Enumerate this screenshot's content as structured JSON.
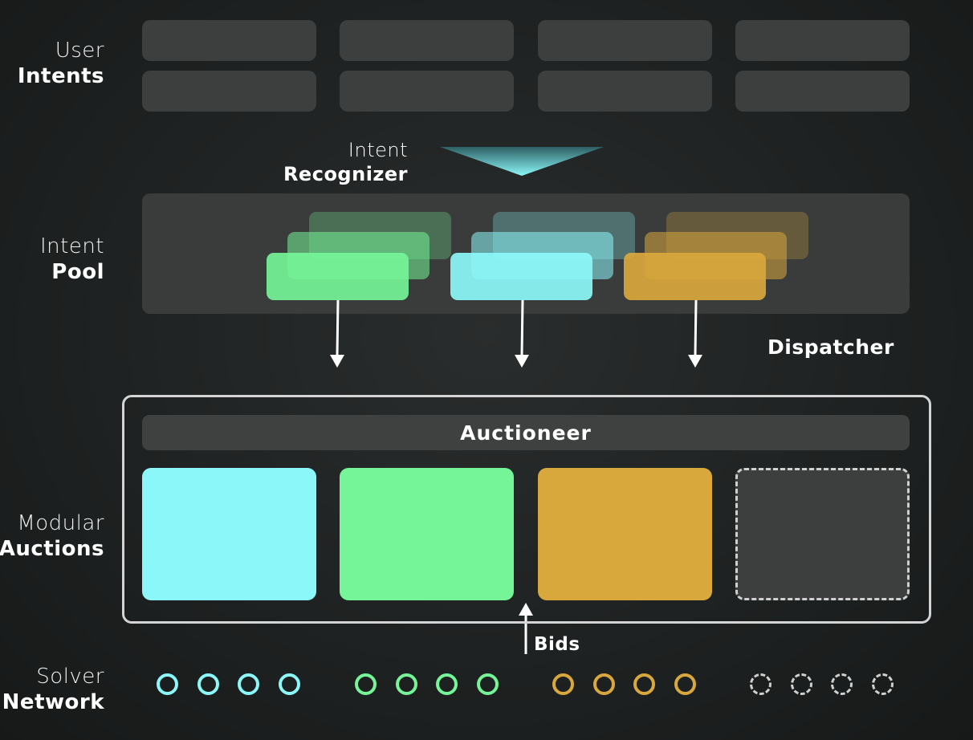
{
  "colors": {
    "cyan": "#8cf7f9",
    "green": "#75f498",
    "gold": "#d9a83d",
    "empty": "#3d3f3f"
  },
  "rows": {
    "user_intents": {
      "line1": "User",
      "line2": "Intents"
    },
    "intent_pool": {
      "line1": "Intent",
      "line2": "Pool"
    },
    "modular_auctions": {
      "line1": "Modular",
      "line2": "Auctions"
    },
    "solver_network": {
      "line1": "Solver",
      "line2": "Network"
    }
  },
  "recognizer": {
    "line1": "Intent",
    "line2": "Recognizer"
  },
  "dispatcher": {
    "label": "Dispatcher"
  },
  "auctioneer": {
    "label": "Auctioneer"
  },
  "bids": {
    "label": "Bids"
  },
  "intent_pool_groups": [
    "green",
    "cyan",
    "gold"
  ],
  "auction_modules": [
    "cyan",
    "green",
    "gold",
    "empty"
  ],
  "solver_groups": [
    {
      "color": "cyan",
      "count": 4
    },
    {
      "color": "green",
      "count": 4
    },
    {
      "color": "gold",
      "count": 4
    },
    {
      "color": "empty",
      "count": 4
    }
  ]
}
